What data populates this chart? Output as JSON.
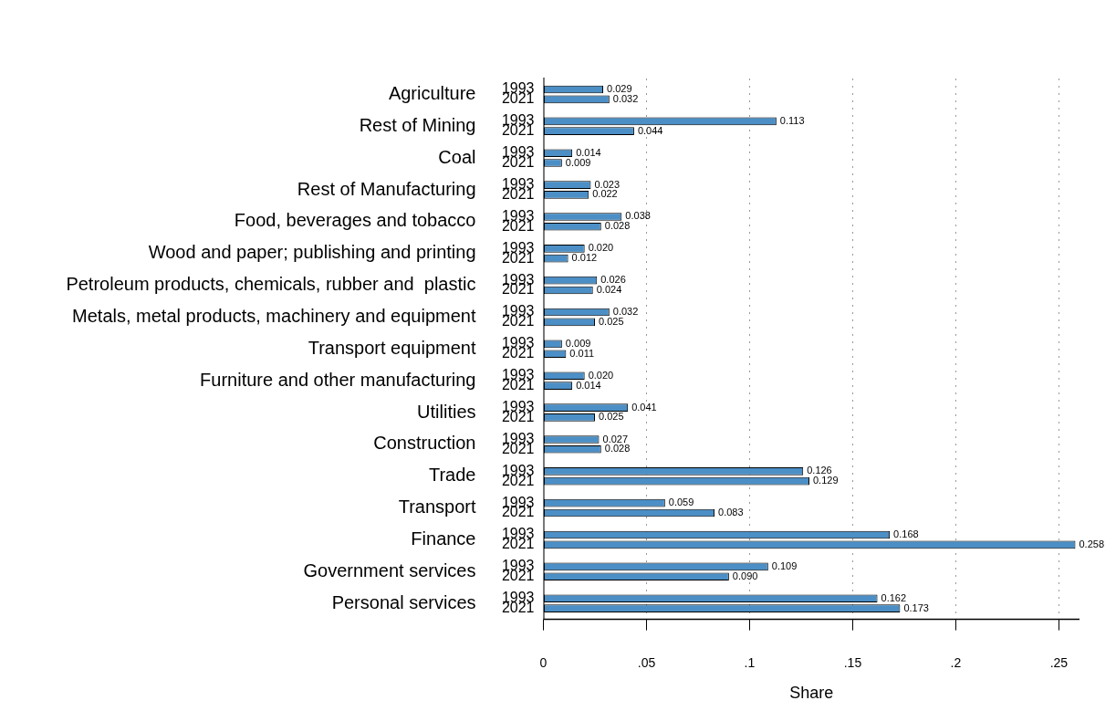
{
  "chart_data": {
    "type": "bar",
    "orientation": "horizontal",
    "xlabel": "Share",
    "categories": [
      "Agriculture",
      "Rest of Mining",
      "Coal",
      "Rest of Manufacturing",
      "Food, beverages and tobacco",
      "Wood and paper; publishing and printing",
      "Petroleum products, chemicals, rubber and  plastic",
      "Metals, metal products, machinery and equipment",
      "Transport equipment",
      "Furniture and other manufacturing",
      "Utilities",
      "Construction",
      "Trade",
      "Transport",
      "Finance",
      "Government services",
      "Personal services"
    ],
    "series": [
      {
        "name": "1993",
        "color": "#4b8fc6",
        "values": [
          0.029,
          0.113,
          0.014,
          0.023,
          0.038,
          0.02,
          0.026,
          0.032,
          0.009,
          0.02,
          0.041,
          0.027,
          0.126,
          0.059,
          0.168,
          0.109,
          0.162
        ],
        "value_labels": [
          "0.029",
          "0.113",
          "0.014",
          "0.023",
          "0.038",
          "0.020",
          "0.026",
          "0.032",
          "0.009",
          "0.020",
          "0.041",
          "0.027",
          "0.126",
          "0.059",
          "0.168",
          "0.109",
          "0.162"
        ]
      },
      {
        "name": "2021",
        "color": "#4b8fc6",
        "values": [
          0.032,
          0.044,
          0.009,
          0.022,
          0.028,
          0.012,
          0.024,
          0.025,
          0.011,
          0.014,
          0.025,
          0.028,
          0.129,
          0.083,
          0.258,
          0.09,
          0.173
        ],
        "value_labels": [
          "0.032",
          "0.044",
          "0.009",
          "0.022",
          "0.028",
          "0.012",
          "0.024",
          "0.025",
          "0.011",
          "0.014",
          "0.025",
          "0.028",
          "0.129",
          "0.083",
          "0.258",
          "0.090",
          "0.173"
        ]
      }
    ],
    "xlim": [
      0,
      0.26
    ],
    "xticks": [
      0,
      {
        "value": 0.05,
        "label": ".05"
      },
      {
        "value": 0.1,
        "label": ".1"
      },
      {
        "value": 0.15,
        "label": ".15"
      },
      {
        "value": 0.2,
        "label": ".2"
      },
      {
        "value": 0.25,
        "label": ".25"
      }
    ],
    "grid": "x",
    "legend": false
  }
}
